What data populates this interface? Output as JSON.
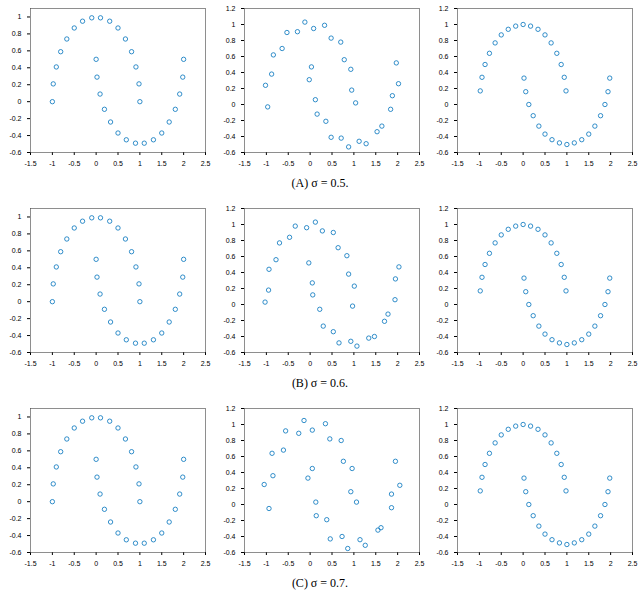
{
  "chart_data": [
    {
      "type": "scatter",
      "color": "#0072bd",
      "marker": "circle",
      "xlim": [
        -1.5,
        2.5
      ],
      "ylim": [
        -0.6,
        1.1
      ],
      "xticks": [
        -1.5,
        -1,
        -0.5,
        0,
        0.5,
        1,
        1.5,
        2,
        2.5
      ],
      "yticks": [
        -0.6,
        -0.4,
        -0.2,
        0,
        0.2,
        0.4,
        0.6,
        0.8,
        1
      ],
      "x": [
        1.0,
        0.98,
        0.91,
        0.81,
        0.67,
        0.5,
        0.31,
        0.1,
        -0.1,
        -0.31,
        -0.5,
        -0.67,
        -0.81,
        -0.91,
        -0.98,
        -1.0,
        0.0,
        0.02,
        0.09,
        0.19,
        0.33,
        0.5,
        0.69,
        0.9,
        1.1,
        1.31,
        1.5,
        1.67,
        1.81,
        1.91,
        1.98,
        2.0
      ],
      "y": [
        0.0,
        0.21,
        0.41,
        0.59,
        0.74,
        0.87,
        0.95,
        0.99,
        0.99,
        0.95,
        0.87,
        0.74,
        0.59,
        0.41,
        0.21,
        0.0,
        0.5,
        0.29,
        0.09,
        -0.09,
        -0.24,
        -0.37,
        -0.45,
        -0.49,
        -0.49,
        -0.45,
        -0.37,
        -0.24,
        -0.09,
        0.09,
        0.29,
        0.5
      ]
    },
    {
      "type": "scatter",
      "color": "#0072bd",
      "marker": "circle",
      "caption": "(A) σ = 0.5.",
      "xlim": [
        -1.5,
        2.5
      ],
      "ylim": [
        -0.6,
        1.2
      ],
      "xticks": [
        -1.5,
        -1,
        -0.5,
        0,
        0.5,
        1,
        1.5,
        2,
        2.5
      ],
      "yticks": [
        -0.6,
        -0.4,
        -0.2,
        0,
        0.2,
        0.4,
        0.6,
        0.8,
        1,
        1.2
      ],
      "x": [
        1.04,
        0.95,
        0.93,
        0.78,
        0.7,
        0.48,
        0.33,
        0.08,
        -0.12,
        -0.29,
        -0.53,
        -0.64,
        -0.84,
        -0.88,
        -1.02,
        -0.97,
        0.03,
        -0.02,
        0.12,
        0.16,
        0.36,
        0.48,
        0.71,
        0.88,
        1.12,
        1.28,
        1.53,
        1.64,
        1.84,
        1.88,
        2.02,
        1.97
      ],
      "y": [
        0.02,
        0.18,
        0.44,
        0.56,
        0.78,
        0.83,
        0.99,
        0.95,
        1.03,
        0.91,
        0.9,
        0.7,
        0.62,
        0.38,
        0.24,
        -0.03,
        0.47,
        0.31,
        0.06,
        -0.12,
        -0.21,
        -0.41,
        -0.42,
        -0.53,
        -0.46,
        -0.49,
        -0.34,
        -0.27,
        -0.06,
        0.11,
        0.26,
        0.52
      ]
    },
    {
      "type": "scatter",
      "color": "#0072bd",
      "marker": "circle",
      "xlim": [
        -1.5,
        2.5
      ],
      "ylim": [
        -0.6,
        1.2
      ],
      "xticks": [
        -1.5,
        -1,
        -0.5,
        0,
        0.5,
        1,
        1.5,
        2,
        2.5
      ],
      "yticks": [
        -0.6,
        -0.4,
        -0.2,
        0,
        0.2,
        0.4,
        0.6,
        0.8,
        1,
        1.2
      ],
      "x": [
        0.98,
        0.94,
        0.87,
        0.77,
        0.64,
        0.5,
        0.34,
        0.17,
        0.0,
        -0.17,
        -0.34,
        -0.5,
        -0.64,
        -0.77,
        -0.87,
        -0.94,
        -0.98,
        0.02,
        0.06,
        0.13,
        0.23,
        0.36,
        0.5,
        0.66,
        0.83,
        1.0,
        1.17,
        1.34,
        1.5,
        1.64,
        1.77,
        1.87,
        1.94,
        1.98
      ],
      "y": [
        0.17,
        0.34,
        0.5,
        0.64,
        0.77,
        0.87,
        0.94,
        0.98,
        1.0,
        0.98,
        0.94,
        0.87,
        0.77,
        0.64,
        0.5,
        0.34,
        0.17,
        0.33,
        0.16,
        0.0,
        -0.14,
        -0.27,
        -0.37,
        -0.44,
        -0.48,
        -0.5,
        -0.48,
        -0.44,
        -0.37,
        -0.27,
        -0.14,
        0.0,
        0.16,
        0.33
      ]
    },
    {
      "type": "scatter",
      "color": "#0072bd",
      "marker": "circle",
      "xlim": [
        -1.5,
        2.5
      ],
      "ylim": [
        -0.6,
        1.1
      ],
      "xticks": [
        -1.5,
        -1,
        -0.5,
        0,
        0.5,
        1,
        1.5,
        2,
        2.5
      ],
      "yticks": [
        -0.6,
        -0.4,
        -0.2,
        0,
        0.2,
        0.4,
        0.6,
        0.8,
        1
      ],
      "x": [
        1.0,
        0.98,
        0.91,
        0.81,
        0.67,
        0.5,
        0.31,
        0.1,
        -0.1,
        -0.31,
        -0.5,
        -0.67,
        -0.81,
        -0.91,
        -0.98,
        -1.0,
        0.0,
        0.02,
        0.09,
        0.19,
        0.33,
        0.5,
        0.69,
        0.9,
        1.1,
        1.31,
        1.5,
        1.67,
        1.81,
        1.91,
        1.98,
        2.0
      ],
      "y": [
        0.0,
        0.21,
        0.41,
        0.59,
        0.74,
        0.87,
        0.95,
        0.99,
        0.99,
        0.95,
        0.87,
        0.74,
        0.59,
        0.41,
        0.21,
        0.0,
        0.5,
        0.29,
        0.09,
        -0.09,
        -0.24,
        -0.37,
        -0.45,
        -0.49,
        -0.49,
        -0.45,
        -0.37,
        -0.24,
        -0.09,
        0.09,
        0.29,
        0.5
      ]
    },
    {
      "type": "scatter",
      "color": "#0072bd",
      "marker": "circle",
      "caption": "(B) σ = 0.6.",
      "xlim": [
        -1.5,
        2.5
      ],
      "ylim": [
        -0.6,
        1.2
      ],
      "xticks": [
        -1.5,
        -1,
        -0.5,
        0,
        0.5,
        1,
        1.5,
        2,
        2.5
      ],
      "yticks": [
        -0.6,
        -0.4,
        -0.2,
        0,
        0.2,
        0.4,
        0.6,
        0.8,
        1,
        1.2
      ],
      "x": [
        0.97,
        1.01,
        0.88,
        0.84,
        0.64,
        0.53,
        0.28,
        0.12,
        -0.08,
        -0.34,
        -0.47,
        -0.7,
        -0.78,
        -0.94,
        -0.95,
        -1.03,
        -0.03,
        0.05,
        0.06,
        0.22,
        0.3,
        0.53,
        0.66,
        0.93,
        1.07,
        1.34,
        1.47,
        1.7,
        1.78,
        1.94,
        1.95,
        2.03
      ],
      "y": [
        -0.02,
        0.23,
        0.38,
        0.61,
        0.71,
        0.9,
        0.92,
        1.03,
        0.96,
        0.98,
        0.84,
        0.77,
        0.56,
        0.44,
        0.18,
        0.03,
        0.52,
        0.27,
        0.12,
        -0.06,
        -0.27,
        -0.34,
        -0.48,
        -0.46,
        -0.52,
        -0.42,
        -0.4,
        -0.21,
        -0.12,
        0.06,
        0.32,
        0.47
      ]
    },
    {
      "type": "scatter",
      "color": "#0072bd",
      "marker": "circle",
      "xlim": [
        -1.5,
        2.5
      ],
      "ylim": [
        -0.6,
        1.2
      ],
      "xticks": [
        -1.5,
        -1,
        -0.5,
        0,
        0.5,
        1,
        1.5,
        2,
        2.5
      ],
      "yticks": [
        -0.6,
        -0.4,
        -0.2,
        0,
        0.2,
        0.4,
        0.6,
        0.8,
        1,
        1.2
      ],
      "x": [
        0.98,
        0.94,
        0.87,
        0.77,
        0.64,
        0.5,
        0.34,
        0.17,
        0.0,
        -0.17,
        -0.34,
        -0.5,
        -0.64,
        -0.77,
        -0.87,
        -0.94,
        -0.98,
        0.02,
        0.06,
        0.13,
        0.23,
        0.36,
        0.5,
        0.66,
        0.83,
        1.0,
        1.17,
        1.34,
        1.5,
        1.64,
        1.77,
        1.87,
        1.94,
        1.98
      ],
      "y": [
        0.17,
        0.34,
        0.5,
        0.64,
        0.77,
        0.87,
        0.94,
        0.98,
        1.0,
        0.98,
        0.94,
        0.87,
        0.77,
        0.64,
        0.5,
        0.34,
        0.17,
        0.33,
        0.16,
        0.0,
        -0.14,
        -0.27,
        -0.37,
        -0.44,
        -0.48,
        -0.5,
        -0.48,
        -0.44,
        -0.37,
        -0.27,
        -0.14,
        0.0,
        0.16,
        0.33
      ]
    },
    {
      "type": "scatter",
      "color": "#0072bd",
      "marker": "circle",
      "xlim": [
        -1.5,
        2.5
      ],
      "ylim": [
        -0.6,
        1.1
      ],
      "xticks": [
        -1.5,
        -1,
        -0.5,
        0,
        0.5,
        1,
        1.5,
        2,
        2.5
      ],
      "yticks": [
        -0.6,
        -0.4,
        -0.2,
        0,
        0.2,
        0.4,
        0.6,
        0.8,
        1
      ],
      "x": [
        1.0,
        0.98,
        0.91,
        0.81,
        0.67,
        0.5,
        0.31,
        0.1,
        -0.1,
        -0.31,
        -0.5,
        -0.67,
        -0.81,
        -0.91,
        -0.98,
        -1.0,
        0.0,
        0.02,
        0.09,
        0.19,
        0.33,
        0.5,
        0.69,
        0.9,
        1.1,
        1.31,
        1.5,
        1.67,
        1.81,
        1.91,
        1.98,
        2.0
      ],
      "y": [
        0.0,
        0.21,
        0.41,
        0.59,
        0.74,
        0.87,
        0.95,
        0.99,
        0.99,
        0.95,
        0.87,
        0.74,
        0.59,
        0.41,
        0.21,
        0.0,
        0.5,
        0.29,
        0.09,
        -0.09,
        -0.24,
        -0.37,
        -0.45,
        -0.49,
        -0.49,
        -0.45,
        -0.37,
        -0.24,
        -0.09,
        0.09,
        0.29,
        0.5
      ]
    },
    {
      "type": "scatter",
      "color": "#0072bd",
      "marker": "circle",
      "caption": "(C) σ = 0.7.",
      "xlim": [
        -1.5,
        2.5
      ],
      "ylim": [
        -0.6,
        1.2
      ],
      "xticks": [
        -1.5,
        -1,
        -0.5,
        0,
        0.5,
        1,
        1.5,
        2,
        2.5
      ],
      "yticks": [
        -0.6,
        -0.4,
        -0.2,
        0,
        0.2,
        0.4,
        0.6,
        0.8,
        1,
        1.2
      ],
      "x": [
        1.06,
        0.93,
        0.96,
        0.76,
        0.71,
        0.45,
        0.35,
        0.05,
        -0.14,
        -0.26,
        -0.56,
        -0.61,
        -0.87,
        -0.85,
        -1.05,
        -0.94,
        0.05,
        -0.05,
        0.13,
        0.14,
        0.38,
        0.46,
        0.73,
        0.86,
        1.14,
        1.26,
        1.55,
        1.62,
        1.86,
        1.86,
        2.05,
        1.95
      ],
      "y": [
        0.03,
        0.16,
        0.45,
        0.54,
        0.8,
        0.82,
        1.01,
        0.93,
        1.05,
        0.89,
        0.92,
        0.68,
        0.64,
        0.36,
        0.25,
        -0.05,
        0.45,
        0.33,
        0.03,
        -0.14,
        -0.19,
        -0.43,
        -0.4,
        -0.55,
        -0.44,
        -0.51,
        -0.32,
        -0.29,
        -0.04,
        0.13,
        0.24,
        0.54
      ]
    },
    {
      "type": "scatter",
      "color": "#0072bd",
      "marker": "circle",
      "xlim": [
        -1.5,
        2.5
      ],
      "ylim": [
        -0.6,
        1.2
      ],
      "xticks": [
        -1.5,
        -1,
        -0.5,
        0,
        0.5,
        1,
        1.5,
        2,
        2.5
      ],
      "yticks": [
        -0.6,
        -0.4,
        -0.2,
        0,
        0.2,
        0.4,
        0.6,
        0.8,
        1,
        1.2
      ],
      "x": [
        0.98,
        0.94,
        0.87,
        0.77,
        0.64,
        0.5,
        0.34,
        0.17,
        0.0,
        -0.17,
        -0.34,
        -0.5,
        -0.64,
        -0.77,
        -0.87,
        -0.94,
        -0.98,
        0.02,
        0.06,
        0.13,
        0.23,
        0.36,
        0.5,
        0.66,
        0.83,
        1.0,
        1.17,
        1.34,
        1.5,
        1.64,
        1.77,
        1.87,
        1.94,
        1.98
      ],
      "y": [
        0.17,
        0.34,
        0.5,
        0.64,
        0.77,
        0.87,
        0.94,
        0.98,
        1.0,
        0.98,
        0.94,
        0.87,
        0.77,
        0.64,
        0.5,
        0.34,
        0.17,
        0.33,
        0.16,
        0.0,
        -0.14,
        -0.27,
        -0.37,
        -0.44,
        -0.48,
        -0.5,
        -0.48,
        -0.44,
        -0.37,
        -0.27,
        -0.14,
        0.0,
        0.16,
        0.33
      ]
    }
  ]
}
